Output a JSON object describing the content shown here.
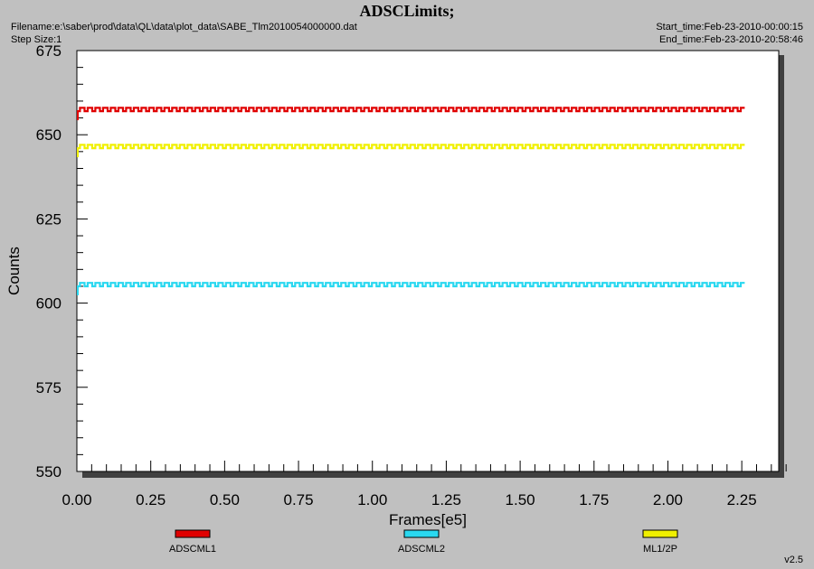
{
  "header": {
    "title": "ADSCLimits;",
    "filename": "Filename:e:\\saber\\prod\\data\\QL\\data\\plot_data\\SABE_Tlm2010054000000.dat",
    "step_size": "Step Size:1",
    "start_time": "Start_time:Feb-23-2010-00:00:15",
    "end_time": "End_time:Feb-23-2010-20:58:46",
    "version": "v2.5"
  },
  "chart_data": {
    "type": "line",
    "title": "ADSCLimits;",
    "xlabel": "Frames[e5]",
    "ylabel": "Counts",
    "xlim": [
      0.0,
      2.375
    ],
    "ylim": [
      550,
      675
    ],
    "xticks": [
      "0.00",
      "0.25",
      "0.50",
      "0.75",
      "1.00",
      "1.25",
      "1.50",
      "1.75",
      "2.00",
      "2.25"
    ],
    "yticks": [
      "550",
      "575",
      "600",
      "625",
      "650",
      "675"
    ],
    "legend_position": "bottom",
    "grid": false,
    "series": [
      {
        "name": "ADSCML1",
        "color": "#e00000",
        "x_range": [
          0.0,
          2.26
        ],
        "low": 657,
        "high": 658,
        "period": 0.052
      },
      {
        "name": "ADSCML2",
        "color": "#29d8f0",
        "x_range": [
          0.0,
          2.26
        ],
        "low": 605,
        "high": 606,
        "period": 0.052
      },
      {
        "name": "ML1/2P",
        "color": "#f0f000",
        "x_range": [
          0.0,
          2.26
        ],
        "low": 646,
        "high": 647,
        "period": 0.052
      }
    ]
  }
}
